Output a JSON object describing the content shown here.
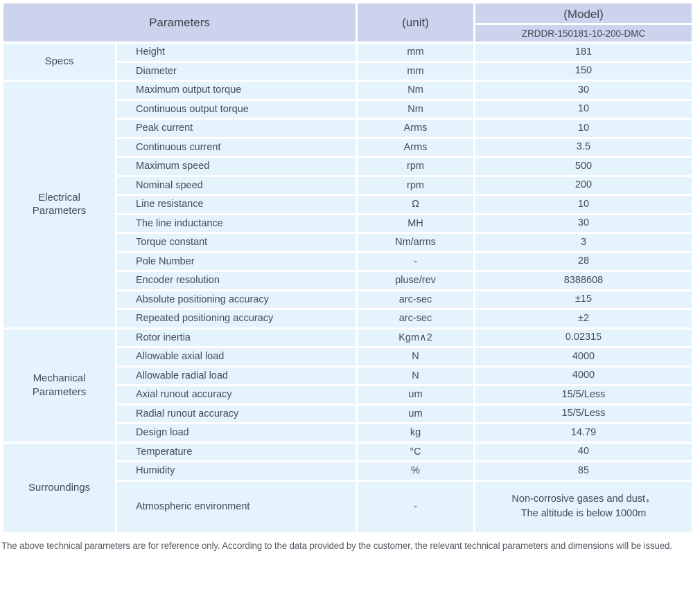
{
  "header": {
    "parameters_label": "Parameters",
    "unit_label": "(unit)",
    "model_label": "(Model)",
    "model_number": "ZRDDR-150181-10-200-DMC"
  },
  "groups": [
    {
      "name": "Specs",
      "rows": [
        {
          "parameter": "Height",
          "unit": "mm",
          "value": "181"
        },
        {
          "parameter": "Diameter",
          "unit": "mm",
          "value": "150"
        }
      ]
    },
    {
      "name": "Electrical\nParameters",
      "rows": [
        {
          "parameter": "Maximum output torque",
          "unit": "Nm",
          "value": "30"
        },
        {
          "parameter": "Continuous output torque",
          "unit": "Nm",
          "value": "10"
        },
        {
          "parameter": "Peak current",
          "unit": "Arms",
          "value": "10"
        },
        {
          "parameter": "Continuous current",
          "unit": "Arms",
          "value": "3.5"
        },
        {
          "parameter": "Maximum speed",
          "unit": "rpm",
          "value": "500"
        },
        {
          "parameter": "Nominal speed",
          "unit": "rpm",
          "value": "200"
        },
        {
          "parameter": "Line resistance",
          "unit": "Ω",
          "value": "10"
        },
        {
          "parameter": "The line inductance",
          "unit": "MH",
          "value": "30"
        },
        {
          "parameter": "Torque constant",
          "unit": "Nm/arms",
          "value": "3"
        },
        {
          "parameter": "Pole Number",
          "unit": "-",
          "value": "28"
        },
        {
          "parameter": "Encoder resolution",
          "unit": "pluse/rev",
          "value": "8388608"
        },
        {
          "parameter": "Absolute positioning accuracy",
          "unit": "arc-sec",
          "value": "±15"
        },
        {
          "parameter": "Repeated positioning accuracy",
          "unit": "arc-sec",
          "value": "±2"
        }
      ]
    },
    {
      "name": "Mechanical\nParameters",
      "rows": [
        {
          "parameter": "Rotor inertia",
          "unit": "Kgm∧2",
          "value": "0.02315"
        },
        {
          "parameter": "Allowable axial load",
          "unit": "N",
          "value": "4000"
        },
        {
          "parameter": "Allowable radial load",
          "unit": "N",
          "value": "4000"
        },
        {
          "parameter": "Axial runout accuracy",
          "unit": "um",
          "value": "15/5/Less"
        },
        {
          "parameter": "Radial runout accuracy",
          "unit": "um",
          "value": "15/5/Less"
        },
        {
          "parameter": "Design load",
          "unit": "kg",
          "value": "14.79"
        }
      ]
    },
    {
      "name": "Surroundings",
      "rows": [
        {
          "parameter": "Temperature",
          "unit": "°C",
          "value": "40"
        },
        {
          "parameter": "Humidity",
          "unit": "%",
          "value": "85"
        },
        {
          "parameter": "Atmospheric environment",
          "unit": "-",
          "value": "Non-corrosive gases and dust，\nThe altitude is below 1000m"
        }
      ]
    }
  ],
  "footer_note": "The above technical parameters are for reference only. According to the data provided by the customer, the relevant technical parameters and dimensions will be issued.",
  "colors": {
    "header_bg": "#cbd4ec",
    "row_bg": "#e4f3fc",
    "separator": "#ffffff",
    "text": "#454b55"
  }
}
